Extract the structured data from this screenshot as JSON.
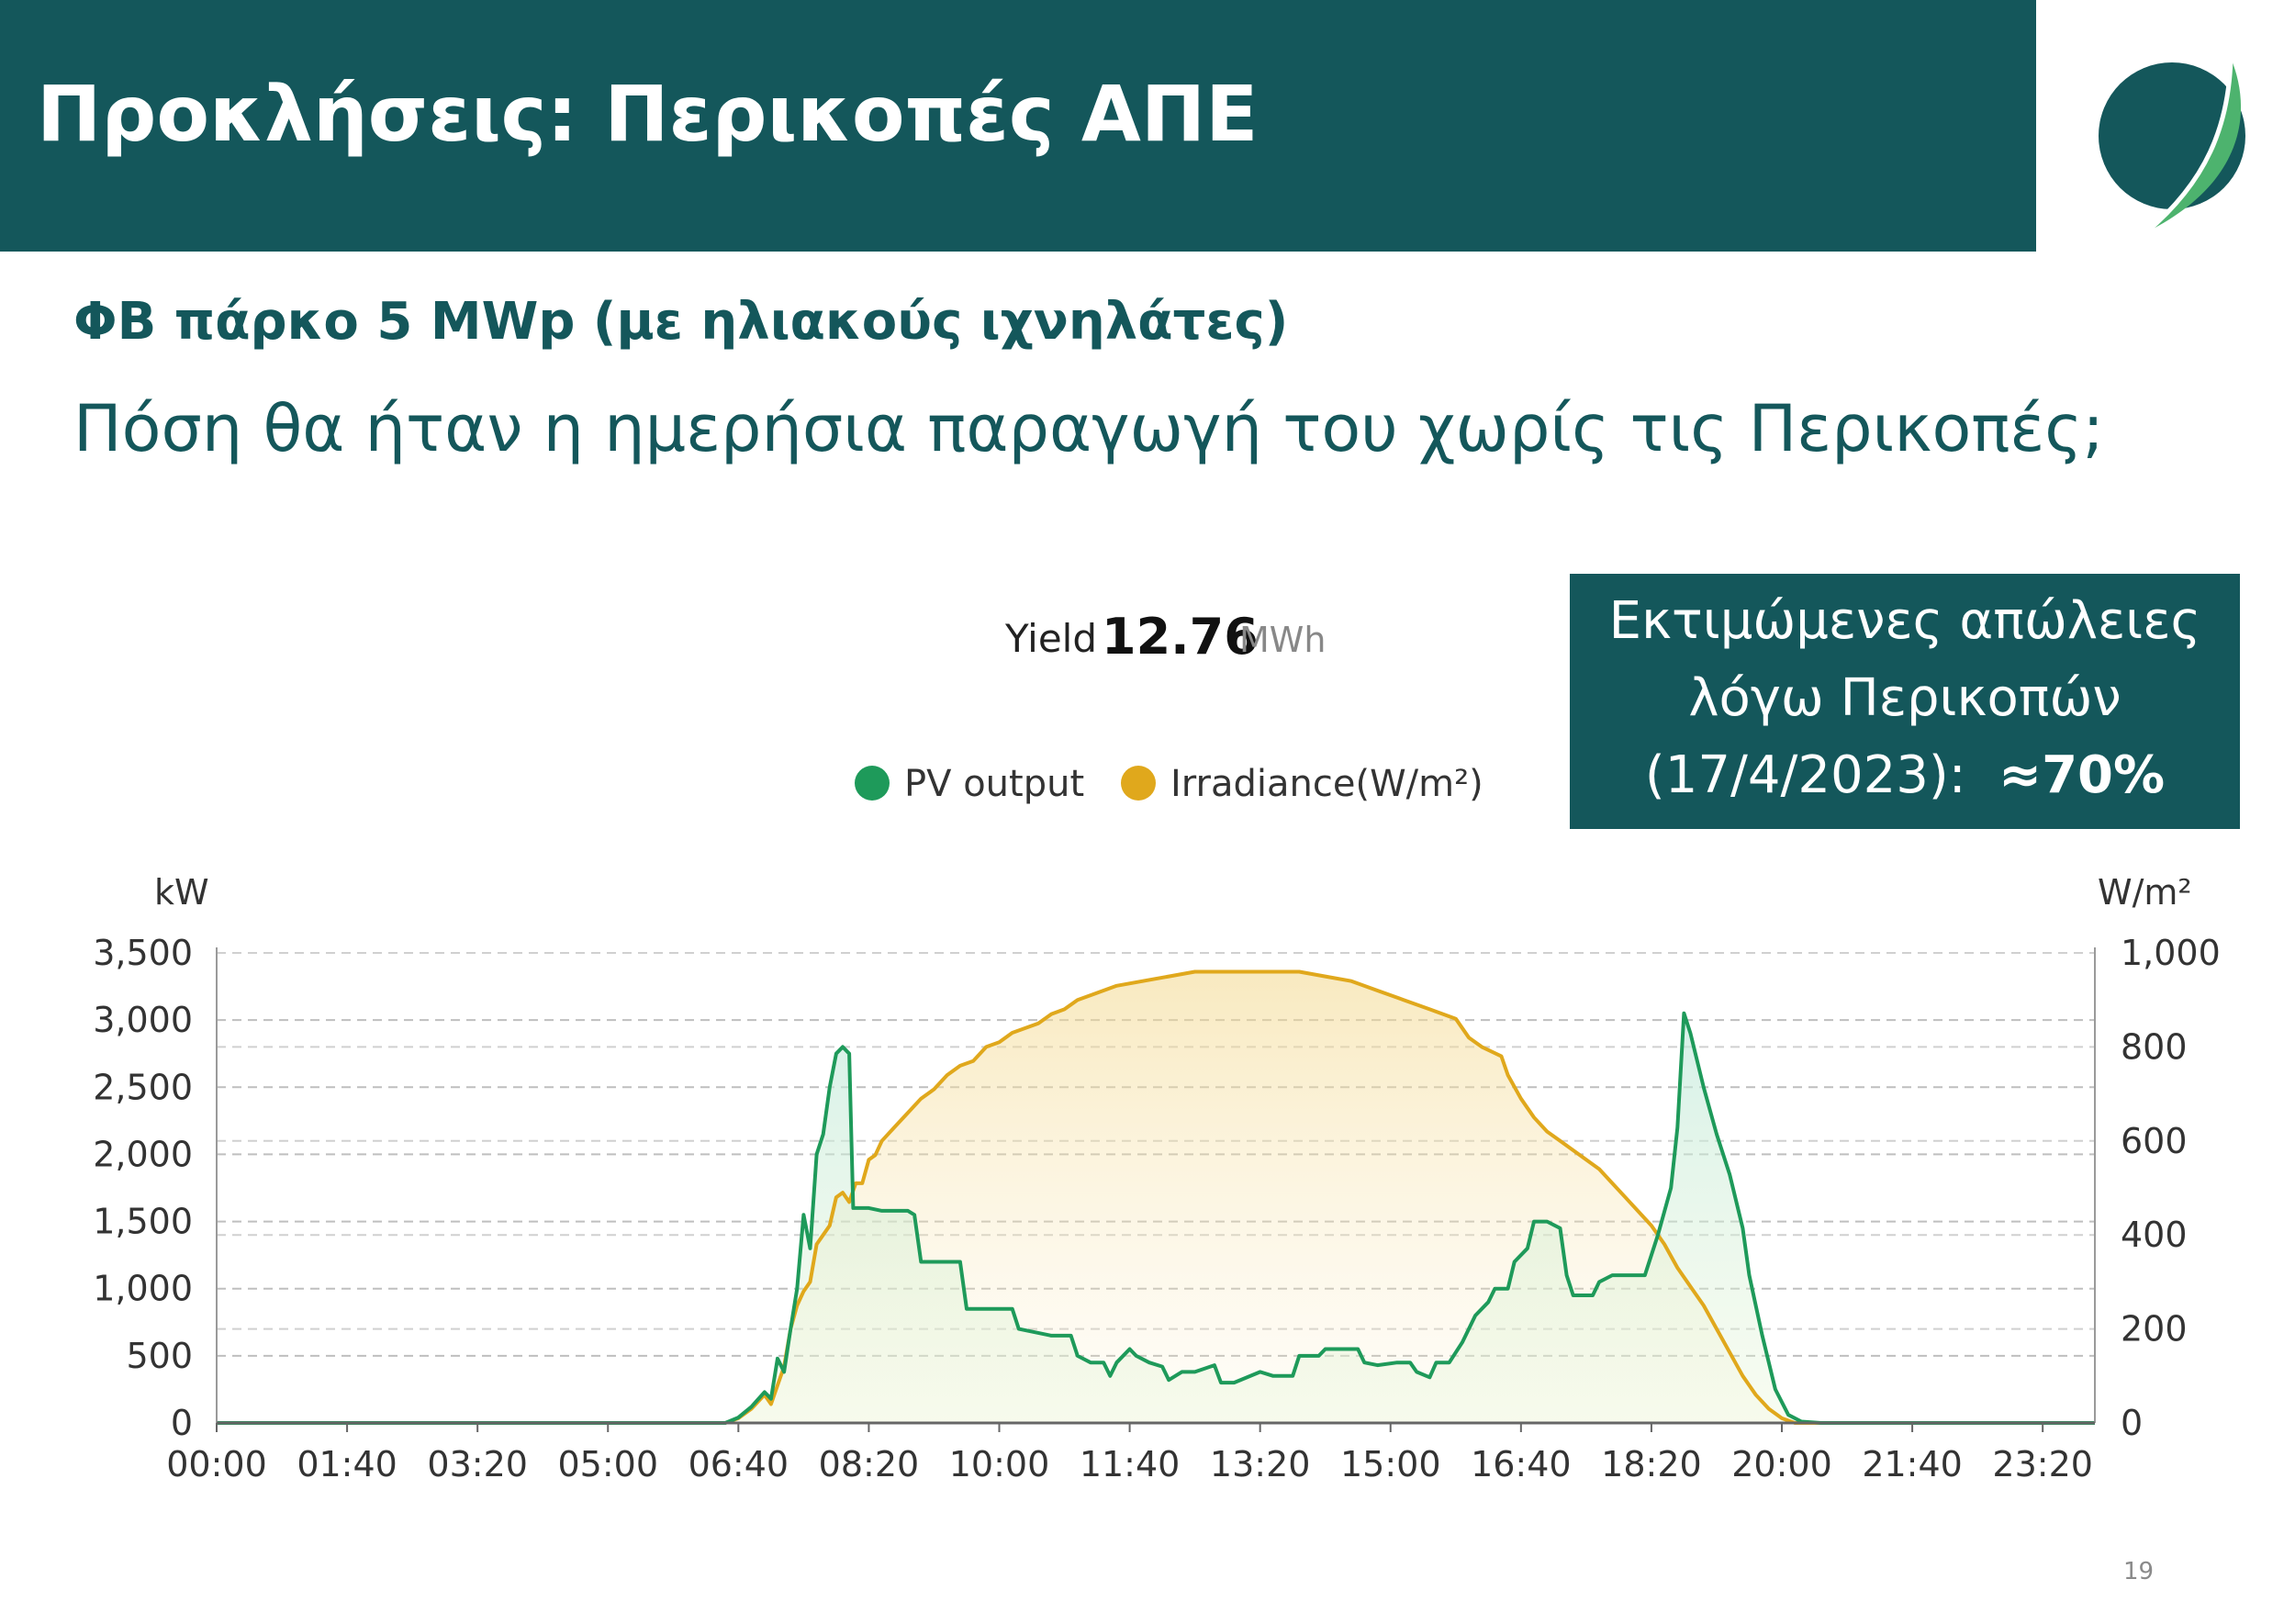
{
  "slide": {
    "title": "Προκλήσεις: Περικοπές ΑΠΕ",
    "subtitle": "ΦΒ πάρκο 5 MWp (με ηλιακούς ιχνηλάτες)",
    "question": "Πόση θα ήταν η ημερήσια παραγωγή του χωρίς τις Περικοπές;",
    "page_number": "19",
    "loss_box": {
      "line1": "Εκτιμώμενες απώλειες",
      "line2": "λόγω Περικοπών",
      "line3_prefix": "(17/4/2023):  ",
      "line3_value": "≈70%"
    }
  },
  "colors": {
    "brand_teal": "#14575B",
    "pv_output": "#1E9A5A",
    "irradiance": "#E0A81C",
    "logo_light_green": "#4DB36E"
  },
  "icons": {
    "logo": "leaf-logo-icon"
  },
  "chart_data": {
    "type": "line",
    "yield": {
      "label": "Yield",
      "value": "12.76",
      "unit": "MWh"
    },
    "legend": {
      "placement": "top-center",
      "items": [
        "PV output",
        "Irradiance(W/m²)"
      ]
    },
    "y_left": {
      "label": "kW",
      "ticks": [
        "3,500",
        "3,000",
        "2,500",
        "2,000",
        "1,500",
        "1,000",
        "500",
        "0"
      ],
      "lim": [
        0,
        3500
      ]
    },
    "y_right": {
      "label": "W/m²",
      "ticks": [
        "1,000",
        "800",
        "600",
        "400",
        "200",
        "0"
      ],
      "lim": [
        0,
        1000
      ]
    },
    "x_ticks": [
      "00:00",
      "01:40",
      "03:20",
      "05:00",
      "06:40",
      "08:20",
      "10:00",
      "11:40",
      "13:20",
      "15:00",
      "16:40",
      "18:20",
      "20:00",
      "21:40",
      "23:20"
    ],
    "x_range_minutes": [
      0,
      1440
    ],
    "grid": true,
    "series": [
      {
        "name": "PV output",
        "axis": "left",
        "points": [
          [
            0,
            0
          ],
          [
            390,
            0
          ],
          [
            400,
            40
          ],
          [
            410,
            120
          ],
          [
            420,
            230
          ],
          [
            425,
            180
          ],
          [
            430,
            480
          ],
          [
            435,
            380
          ],
          [
            440,
            700
          ],
          [
            445,
            1000
          ],
          [
            450,
            1550
          ],
          [
            455,
            1300
          ],
          [
            460,
            2000
          ],
          [
            465,
            2150
          ],
          [
            470,
            2500
          ],
          [
            475,
            2750
          ],
          [
            480,
            2800
          ],
          [
            485,
            2750
          ],
          [
            488,
            1600
          ],
          [
            500,
            1600
          ],
          [
            510,
            1580
          ],
          [
            520,
            1580
          ],
          [
            530,
            1580
          ],
          [
            535,
            1550
          ],
          [
            540,
            1200
          ],
          [
            550,
            1200
          ],
          [
            560,
            1200
          ],
          [
            570,
            1200
          ],
          [
            575,
            850
          ],
          [
            590,
            850
          ],
          [
            600,
            850
          ],
          [
            610,
            850
          ],
          [
            615,
            700
          ],
          [
            640,
            650
          ],
          [
            655,
            650
          ],
          [
            660,
            500
          ],
          [
            670,
            450
          ],
          [
            680,
            450
          ],
          [
            685,
            350
          ],
          [
            690,
            450
          ],
          [
            700,
            550
          ],
          [
            705,
            500
          ],
          [
            715,
            450
          ],
          [
            725,
            420
          ],
          [
            730,
            320
          ],
          [
            740,
            380
          ],
          [
            750,
            380
          ],
          [
            765,
            430
          ],
          [
            770,
            300
          ],
          [
            780,
            300
          ],
          [
            800,
            380
          ],
          [
            810,
            350
          ],
          [
            825,
            350
          ],
          [
            830,
            500
          ],
          [
            845,
            500
          ],
          [
            850,
            550
          ],
          [
            860,
            550
          ],
          [
            875,
            550
          ],
          [
            880,
            450
          ],
          [
            890,
            430
          ],
          [
            905,
            450
          ],
          [
            915,
            450
          ],
          [
            920,
            380
          ],
          [
            930,
            340
          ],
          [
            935,
            450
          ],
          [
            945,
            450
          ],
          [
            955,
            600
          ],
          [
            965,
            800
          ],
          [
            975,
            900
          ],
          [
            980,
            1000
          ],
          [
            990,
            1000
          ],
          [
            995,
            1200
          ],
          [
            1005,
            1300
          ],
          [
            1010,
            1500
          ],
          [
            1020,
            1500
          ],
          [
            1030,
            1450
          ],
          [
            1035,
            1100
          ],
          [
            1040,
            950
          ],
          [
            1055,
            950
          ],
          [
            1060,
            1050
          ],
          [
            1070,
            1100
          ],
          [
            1080,
            1100
          ],
          [
            1095,
            1100
          ],
          [
            1100,
            1250
          ],
          [
            1105,
            1400
          ],
          [
            1115,
            1750
          ],
          [
            1120,
            2200
          ],
          [
            1125,
            3050
          ],
          [
            1130,
            2900
          ],
          [
            1140,
            2500
          ],
          [
            1150,
            2150
          ],
          [
            1160,
            1850
          ],
          [
            1170,
            1450
          ],
          [
            1175,
            1100
          ],
          [
            1185,
            650
          ],
          [
            1195,
            250
          ],
          [
            1205,
            60
          ],
          [
            1215,
            10
          ],
          [
            1230,
            0
          ],
          [
            1440,
            0
          ]
        ]
      },
      {
        "name": "Irradiance(W/m²)",
        "axis": "right",
        "points": [
          [
            0,
            0
          ],
          [
            390,
            0
          ],
          [
            400,
            10
          ],
          [
            410,
            30
          ],
          [
            420,
            60
          ],
          [
            425,
            40
          ],
          [
            430,
            80
          ],
          [
            435,
            120
          ],
          [
            440,
            200
          ],
          [
            445,
            250
          ],
          [
            450,
            280
          ],
          [
            455,
            300
          ],
          [
            460,
            380
          ],
          [
            465,
            400
          ],
          [
            470,
            420
          ],
          [
            475,
            480
          ],
          [
            480,
            490
          ],
          [
            485,
            470
          ],
          [
            490,
            510
          ],
          [
            495,
            510
          ],
          [
            500,
            560
          ],
          [
            505,
            570
          ],
          [
            510,
            600
          ],
          [
            520,
            630
          ],
          [
            530,
            660
          ],
          [
            540,
            690
          ],
          [
            550,
            710
          ],
          [
            560,
            740
          ],
          [
            570,
            760
          ],
          [
            580,
            770
          ],
          [
            590,
            800
          ],
          [
            600,
            810
          ],
          [
            610,
            830
          ],
          [
            620,
            840
          ],
          [
            630,
            850
          ],
          [
            640,
            870
          ],
          [
            650,
            880
          ],
          [
            660,
            900
          ],
          [
            670,
            910
          ],
          [
            690,
            930
          ],
          [
            710,
            940
          ],
          [
            730,
            950
          ],
          [
            750,
            960
          ],
          [
            770,
            960
          ],
          [
            800,
            960
          ],
          [
            830,
            960
          ],
          [
            850,
            950
          ],
          [
            870,
            940
          ],
          [
            890,
            920
          ],
          [
            910,
            900
          ],
          [
            930,
            880
          ],
          [
            950,
            860
          ],
          [
            960,
            820
          ],
          [
            970,
            800
          ],
          [
            985,
            780
          ],
          [
            990,
            740
          ],
          [
            1000,
            690
          ],
          [
            1010,
            650
          ],
          [
            1020,
            620
          ],
          [
            1030,
            600
          ],
          [
            1040,
            580
          ],
          [
            1050,
            560
          ],
          [
            1060,
            540
          ],
          [
            1070,
            510
          ],
          [
            1080,
            480
          ],
          [
            1090,
            450
          ],
          [
            1100,
            420
          ],
          [
            1110,
            380
          ],
          [
            1120,
            330
          ],
          [
            1130,
            290
          ],
          [
            1140,
            250
          ],
          [
            1150,
            200
          ],
          [
            1160,
            150
          ],
          [
            1170,
            100
          ],
          [
            1180,
            60
          ],
          [
            1190,
            30
          ],
          [
            1200,
            10
          ],
          [
            1210,
            0
          ],
          [
            1440,
            0
          ]
        ]
      }
    ]
  }
}
